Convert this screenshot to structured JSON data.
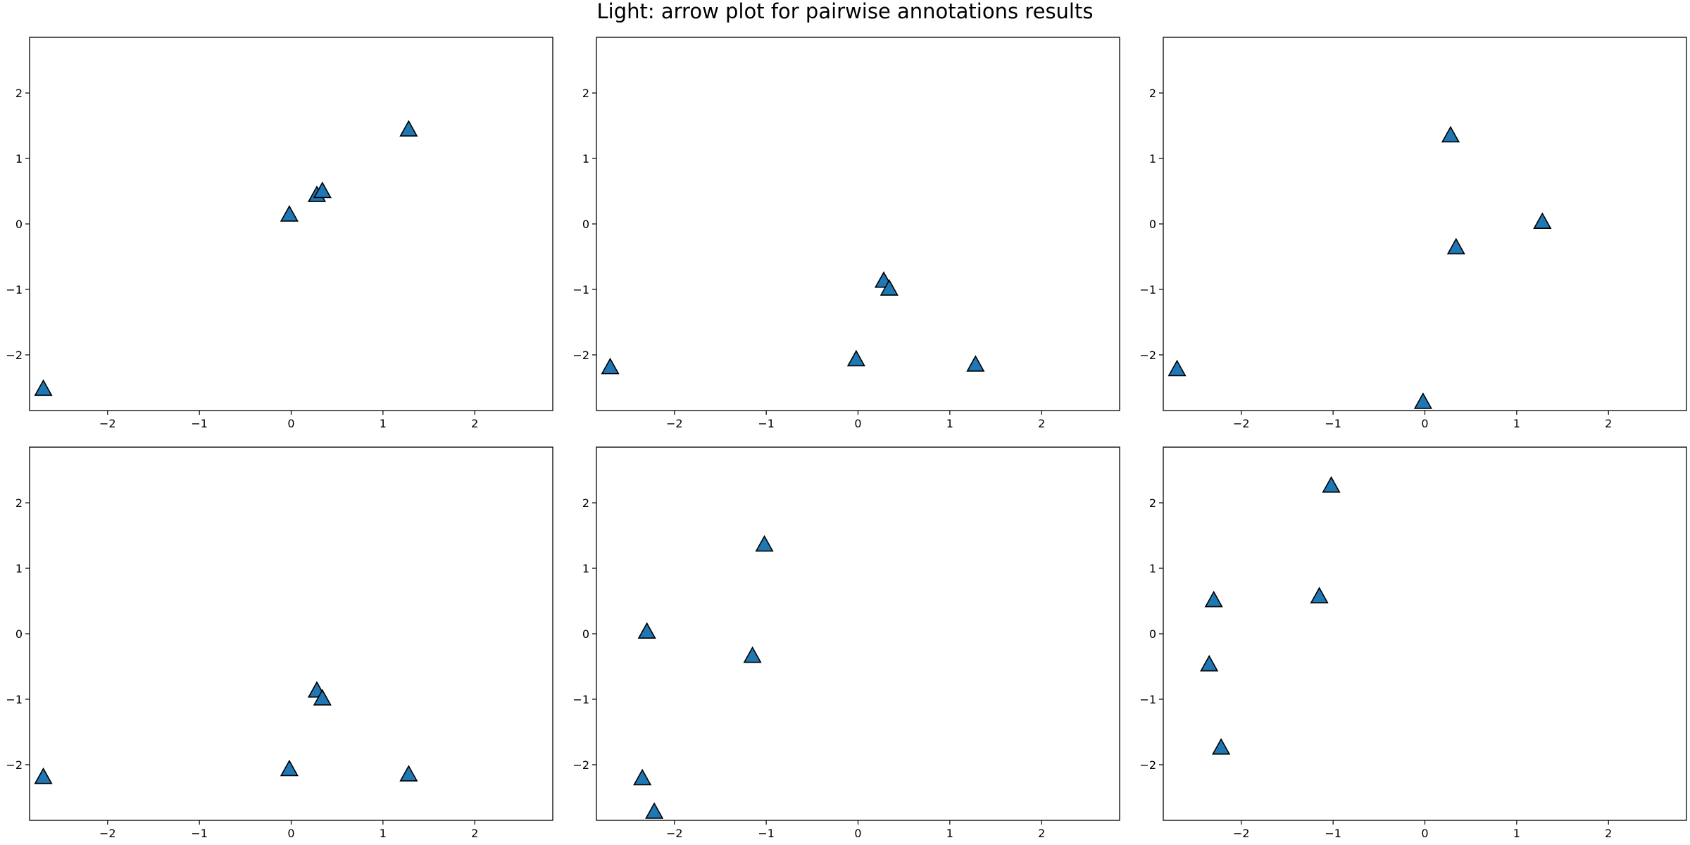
{
  "title": "Light: arrow plot for pairwise annotations results",
  "chart_data": [
    {
      "type": "scatter",
      "marker": "triangle",
      "color": "#1f77b4",
      "xlim": [
        -2.85,
        2.85
      ],
      "ylim": [
        -2.85,
        2.85
      ],
      "xticks": [
        -2,
        -1,
        0,
        1,
        2
      ],
      "yticks": [
        -2,
        -1,
        0,
        1,
        2
      ],
      "points": [
        {
          "x": -2.7,
          "y": -2.53
        },
        {
          "x": -0.02,
          "y": 0.13
        },
        {
          "x": 0.28,
          "y": 0.43
        },
        {
          "x": 0.34,
          "y": 0.49
        },
        {
          "x": 1.28,
          "y": 1.43
        }
      ]
    },
    {
      "type": "scatter",
      "marker": "triangle",
      "color": "#1f77b4",
      "xlim": [
        -2.85,
        2.85
      ],
      "ylim": [
        -2.85,
        2.85
      ],
      "xticks": [
        -2,
        -1,
        0,
        1,
        2
      ],
      "yticks": [
        -2,
        -1,
        0,
        1,
        2
      ],
      "points": [
        {
          "x": -2.7,
          "y": -2.2
        },
        {
          "x": -0.02,
          "y": -2.08
        },
        {
          "x": 1.28,
          "y": -2.16
        },
        {
          "x": 0.28,
          "y": -0.88
        },
        {
          "x": 0.34,
          "y": -1.0
        }
      ]
    },
    {
      "type": "scatter",
      "marker": "triangle",
      "color": "#1f77b4",
      "xlim": [
        -2.85,
        2.85
      ],
      "ylim": [
        -2.85,
        2.85
      ],
      "xticks": [
        -2,
        -1,
        0,
        1,
        2
      ],
      "yticks": [
        -2,
        -1,
        0,
        1,
        2
      ],
      "points": [
        {
          "x": -2.7,
          "y": -2.23
        },
        {
          "x": -0.02,
          "y": -2.73
        },
        {
          "x": 0.28,
          "y": 1.34
        },
        {
          "x": 0.34,
          "y": -0.37
        },
        {
          "x": 1.28,
          "y": 0.02
        }
      ]
    },
    {
      "type": "scatter",
      "marker": "triangle",
      "color": "#1f77b4",
      "xlim": [
        -2.85,
        2.85
      ],
      "ylim": [
        -2.85,
        2.85
      ],
      "xticks": [
        -2,
        -1,
        0,
        1,
        2
      ],
      "yticks": [
        -2,
        -1,
        0,
        1,
        2
      ],
      "points": [
        {
          "x": -2.7,
          "y": -2.2
        },
        {
          "x": -0.02,
          "y": -2.08
        },
        {
          "x": 1.28,
          "y": -2.16
        },
        {
          "x": 0.28,
          "y": -0.88
        },
        {
          "x": 0.34,
          "y": -1.0
        }
      ]
    },
    {
      "type": "scatter",
      "marker": "triangle",
      "color": "#1f77b4",
      "xlim": [
        -2.85,
        2.85
      ],
      "ylim": [
        -2.85,
        2.85
      ],
      "xticks": [
        -2,
        -1,
        0,
        1,
        2
      ],
      "yticks": [
        -2,
        -1,
        0,
        1,
        2
      ],
      "points": [
        {
          "x": -2.3,
          "y": 0.02
        },
        {
          "x": -1.02,
          "y": 1.35
        },
        {
          "x": -1.15,
          "y": -0.35
        },
        {
          "x": -2.35,
          "y": -2.22
        },
        {
          "x": -2.22,
          "y": -2.73
        }
      ]
    },
    {
      "type": "scatter",
      "marker": "triangle",
      "color": "#1f77b4",
      "xlim": [
        -2.85,
        2.85
      ],
      "ylim": [
        -2.85,
        2.85
      ],
      "xticks": [
        -2,
        -1,
        0,
        1,
        2
      ],
      "yticks": [
        -2,
        -1,
        0,
        1,
        2
      ],
      "points": [
        {
          "x": -1.02,
          "y": 2.25
        },
        {
          "x": -2.3,
          "y": 0.5
        },
        {
          "x": -1.15,
          "y": 0.56
        },
        {
          "x": -2.35,
          "y": -0.48
        },
        {
          "x": -2.22,
          "y": -1.75
        }
      ]
    }
  ]
}
